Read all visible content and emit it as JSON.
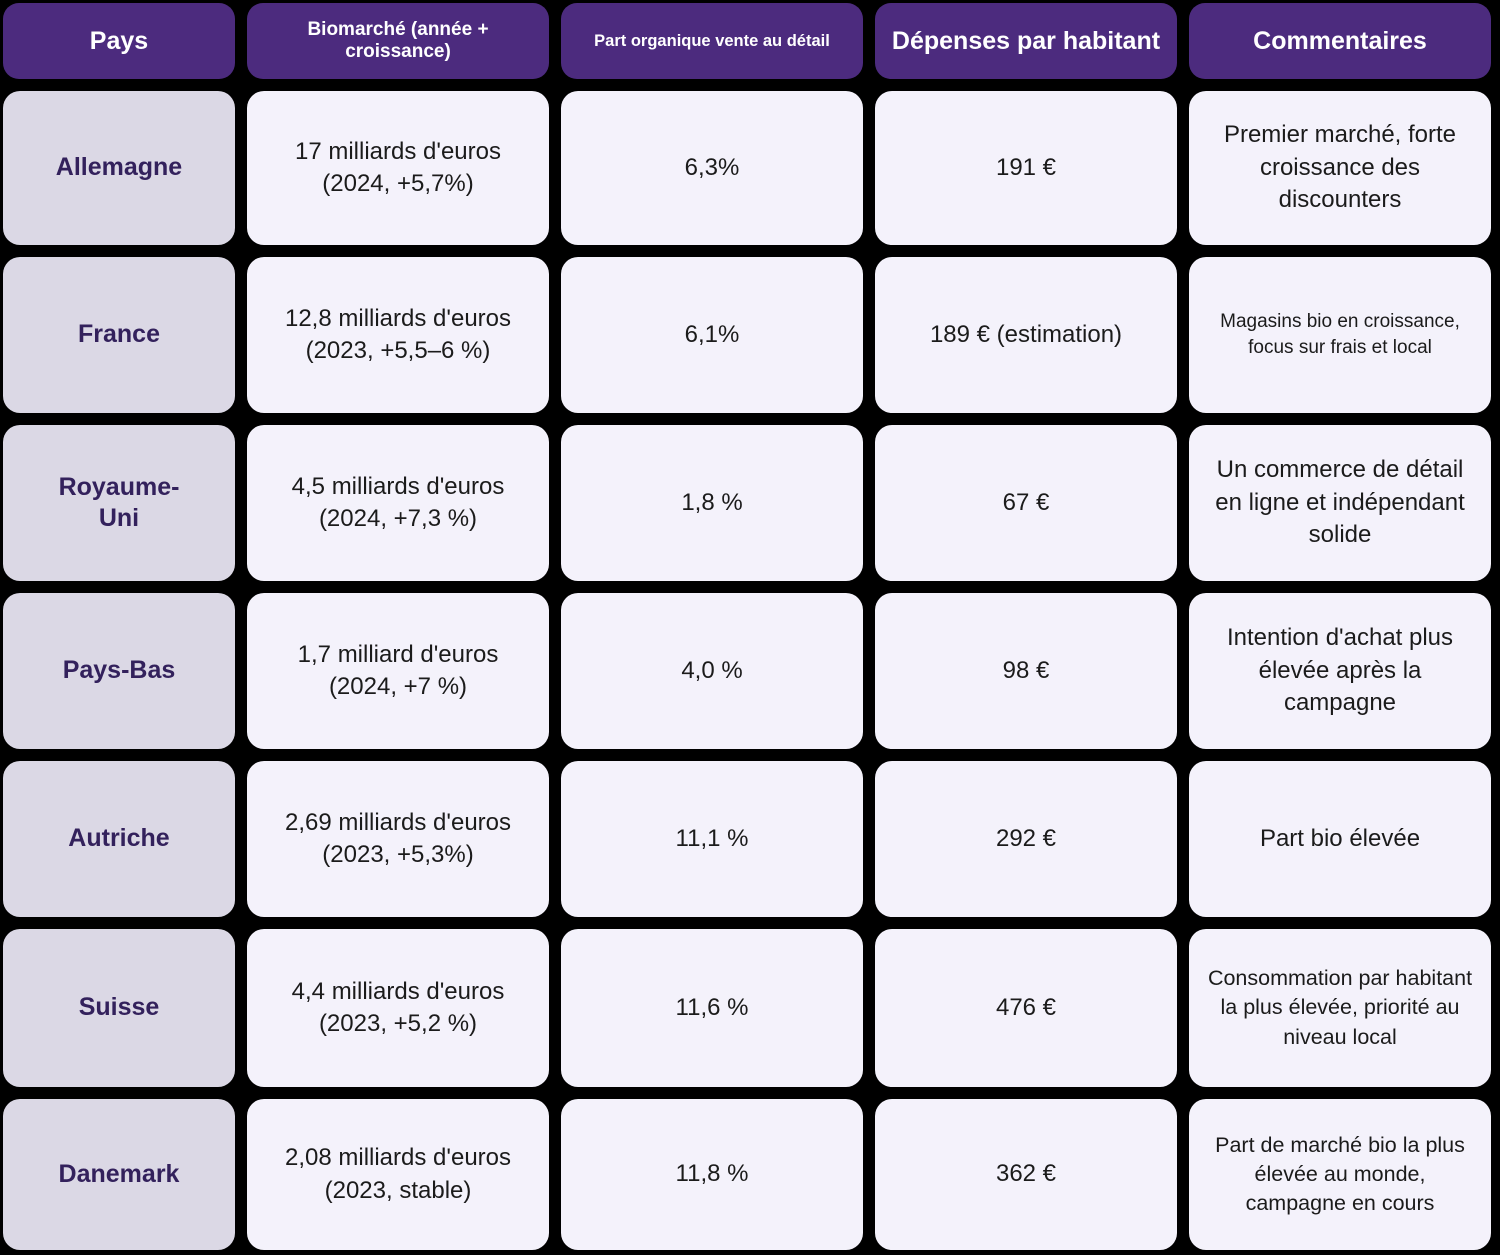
{
  "colors": {
    "page_background": "#000000",
    "header_background": "#4C2B7E",
    "header_text": "#FFFFFF",
    "country_cell_background": "#DBD8E5",
    "country_text": "#33215C",
    "data_cell_background": "#F4F2FB",
    "data_text": "#1B1B1B"
  },
  "table": {
    "headers": [
      {
        "label": "Pays",
        "size": "lg"
      },
      {
        "label": "Biomarché (année + croissance)",
        "size": "md"
      },
      {
        "label": "Part organique vente au détail",
        "size": "sm"
      },
      {
        "label": "Dépenses par habitant",
        "size": "lg"
      },
      {
        "label": "Commentaires",
        "size": "lg"
      }
    ],
    "rows": [
      {
        "country": "Allemagne",
        "market": "17 milliards d'euros\n(2024, +5,7%)",
        "organic_share": "6,3%",
        "per_capita": "191 €",
        "comment": "Premier marché, forte croissance des discounters",
        "comment_size": "lg"
      },
      {
        "country": "France",
        "market": "12,8 milliards d'euros\n(2023, +5,5–6 %)",
        "organic_share": "6,1%",
        "per_capita": "189 € (estimation)",
        "comment": "Magasins bio en croissance, focus sur frais et local",
        "comment_size": "sm"
      },
      {
        "country": "Royaume-\nUni",
        "market": "4,5 milliards d'euros\n(2024, +7,3 %)",
        "organic_share": "1,8 %",
        "per_capita": "67 €",
        "comment": "Un commerce de détail en ligne et indépendant solide",
        "comment_size": "lg"
      },
      {
        "country": "Pays-Bas",
        "market": "1,7 milliard d'euros\n(2024, +7 %)",
        "organic_share": "4,0 %",
        "per_capita": "98 €",
        "comment": "Intention d'achat plus élevée après la campagne",
        "comment_size": "lg"
      },
      {
        "country": "Autriche",
        "market": "2,69 milliards d'euros\n(2023, +5,3%)",
        "organic_share": "11,1 %",
        "per_capita": "292 €",
        "comment": "Part bio élevée",
        "comment_size": "lg"
      },
      {
        "country": "Suisse",
        "market": "4,4 milliards d'euros\n(2023, +5,2 %)",
        "organic_share": "11,6 %",
        "per_capita": "476 €",
        "comment": "Consommation par habitant la plus élevée, priorité au niveau local",
        "comment_size": "md"
      },
      {
        "country": "Danemark",
        "market": "2,08 milliards d'euros\n(2023, stable)",
        "organic_share": "11,8 %",
        "per_capita": "362 €",
        "comment": "Part de marché bio la plus élevée au monde, campagne en cours",
        "comment_size": "md"
      }
    ]
  }
}
